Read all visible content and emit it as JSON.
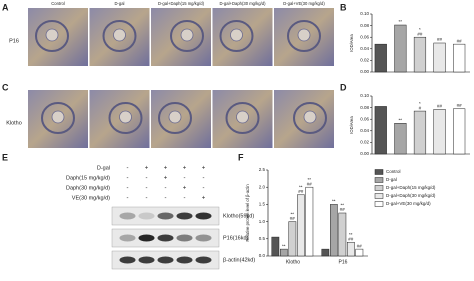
{
  "panels": {
    "letters": [
      "A",
      "B",
      "C",
      "D",
      "E",
      "F"
    ],
    "photo_columns": [
      "Control",
      "D-gal",
      "D-gal+Daph(15 mg/kg/d)",
      "D-gal+Daph(30 mg/kg/d)",
      "D-gal+VE(30 mg/kg/d)"
    ],
    "photo_rows": [
      "P16",
      "Klotho"
    ]
  },
  "blot": {
    "treatments": [
      {
        "label": "D-gal",
        "signs": [
          "-",
          "+",
          "+",
          "+",
          "+"
        ]
      },
      {
        "label": "Daph(15 mg/kg/d)",
        "signs": [
          "-",
          "-",
          "+",
          "-",
          "-"
        ]
      },
      {
        "label": "Daph(30 mg/kg/d)",
        "signs": [
          "-",
          "-",
          "-",
          "+",
          "-"
        ]
      },
      {
        "label": "VE(30 mg/kg/d)",
        "signs": [
          "-",
          "-",
          "-",
          "-",
          "+"
        ]
      }
    ],
    "bands": [
      "Klotho(59kd)",
      "P16(16kd)",
      "β-actin(42kd)"
    ]
  },
  "chart_data": [
    {
      "type": "bar",
      "y_label": "IOD/Area",
      "categories": [
        null,
        null,
        null,
        null,
        null
      ],
      "values": [
        0.048,
        0.081,
        0.06,
        0.05,
        0.048
      ],
      "colors": [
        "#555555",
        "#a6a6a6",
        "#d0d0d0",
        "#e8e8e8",
        "#ffffff"
      ],
      "annotations": [
        null,
        [
          "**"
        ],
        [
          "*",
          "##"
        ],
        [
          "##"
        ],
        [
          "##"
        ]
      ],
      "ylim": [
        0,
        0.1
      ],
      "yticks": [
        {
          "value": 0,
          "label": "0.00"
        },
        {
          "value": 0.02,
          "label": "0.02"
        },
        {
          "value": 0.04,
          "label": "0.04"
        },
        {
          "value": 0.06,
          "label": "0.06"
        },
        {
          "value": 0.08,
          "label": "0.08"
        },
        {
          "value": 0.1,
          "label": "0.10"
        }
      ]
    },
    {
      "type": "bar",
      "y_label": "IOD/Area",
      "categories": [
        null,
        null,
        null,
        null,
        null
      ],
      "values": [
        0.082,
        0.053,
        0.074,
        0.077,
        0.078
      ],
      "colors": [
        "#555555",
        "#a6a6a6",
        "#d0d0d0",
        "#e8e8e8",
        "#ffffff"
      ],
      "annotations": [
        null,
        [
          "**"
        ],
        [
          "*",
          "#"
        ],
        [
          "##"
        ],
        [
          "##"
        ]
      ],
      "ylim": [
        0,
        0.1
      ],
      "yticks": [
        {
          "value": 0,
          "label": "0.00"
        },
        {
          "value": 0.02,
          "label": "0.02"
        },
        {
          "value": 0.04,
          "label": "0.04"
        },
        {
          "value": 0.06,
          "label": "0.06"
        },
        {
          "value": 0.08,
          "label": "0.08"
        },
        {
          "value": 0.1,
          "label": "0.10"
        }
      ]
    },
    {
      "type": "bar",
      "y_label": "Relative protein level of β-actin",
      "categories": [
        "Klotho",
        "P16"
      ],
      "series": [
        {
          "name": "Control",
          "color": "#555555",
          "values": [
            0.55,
            0.2
          ],
          "annotations": [
            null,
            null
          ]
        },
        {
          "name": "D-gal",
          "color": "#a6a6a6",
          "values": [
            0.2,
            1.5
          ],
          "annotations": [
            [
              "**"
            ],
            [
              "**"
            ]
          ]
        },
        {
          "name": "D-gal+Daph(15 mg/kg/d)",
          "color": "#d0d0d0",
          "values": [
            1.0,
            1.25
          ],
          "annotations": [
            [
              "**",
              "##"
            ],
            [
              "**",
              "##"
            ]
          ]
        },
        {
          "name": "D-gal+Daph(30 mg/kg/d)",
          "color": "#e8e8e8",
          "values": [
            1.78,
            0.4
          ],
          "annotations": [
            [
              "**",
              "##"
            ],
            [
              "**",
              "##"
            ]
          ]
        },
        {
          "name": "D-gal+VE(30 mg/kg/d)",
          "color": "#ffffff",
          "values": [
            2.0,
            0.2
          ],
          "annotations": [
            [
              "**",
              "##"
            ],
            [
              "##"
            ]
          ]
        }
      ],
      "ylim": [
        0,
        2.5
      ],
      "yticks": [
        {
          "value": 0,
          "label": "0.0"
        },
        0.5,
        {
          "value": 1,
          "label": "1.0"
        },
        1.5,
        {
          "value": 2,
          "label": "2.0"
        },
        2.5
      ]
    }
  ]
}
